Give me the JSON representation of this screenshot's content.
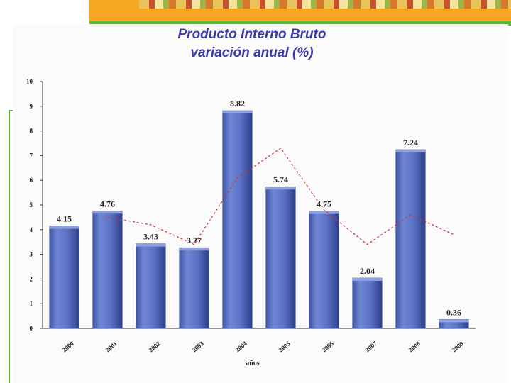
{
  "chart_data": {
    "type": "bar",
    "title": "Producto Interno Bruto",
    "subtitle": "variación anual (%)",
    "xlabel": "años",
    "ylabel": "",
    "categories": [
      "2000",
      "2001",
      "2002",
      "2003",
      "2004",
      "2005",
      "2006",
      "2007",
      "2008",
      "2009"
    ],
    "values": [
      4.15,
      4.76,
      3.43,
      3.27,
      8.82,
      5.74,
      4.75,
      2.04,
      7.24,
      0.36
    ],
    "data_labels": [
      "4.15",
      "4.76",
      "3.43",
      "3.27",
      "8.82",
      "5.74",
      "4.75",
      "2.04",
      "7.24",
      "0.36"
    ],
    "line_series": {
      "style": "dashed",
      "color": "#d33030",
      "values": [
        null,
        4.5,
        4.2,
        3.4,
        6.1,
        7.3,
        4.8,
        3.4,
        4.6,
        3.8
      ]
    },
    "ylim": [
      0,
      10
    ],
    "yticks": [
      0,
      1,
      2,
      3,
      4,
      5,
      6,
      7,
      8,
      9,
      10
    ],
    "grid": false,
    "bar_color": "#5b73c6",
    "bar_color_dark": "#2e3f8a"
  }
}
